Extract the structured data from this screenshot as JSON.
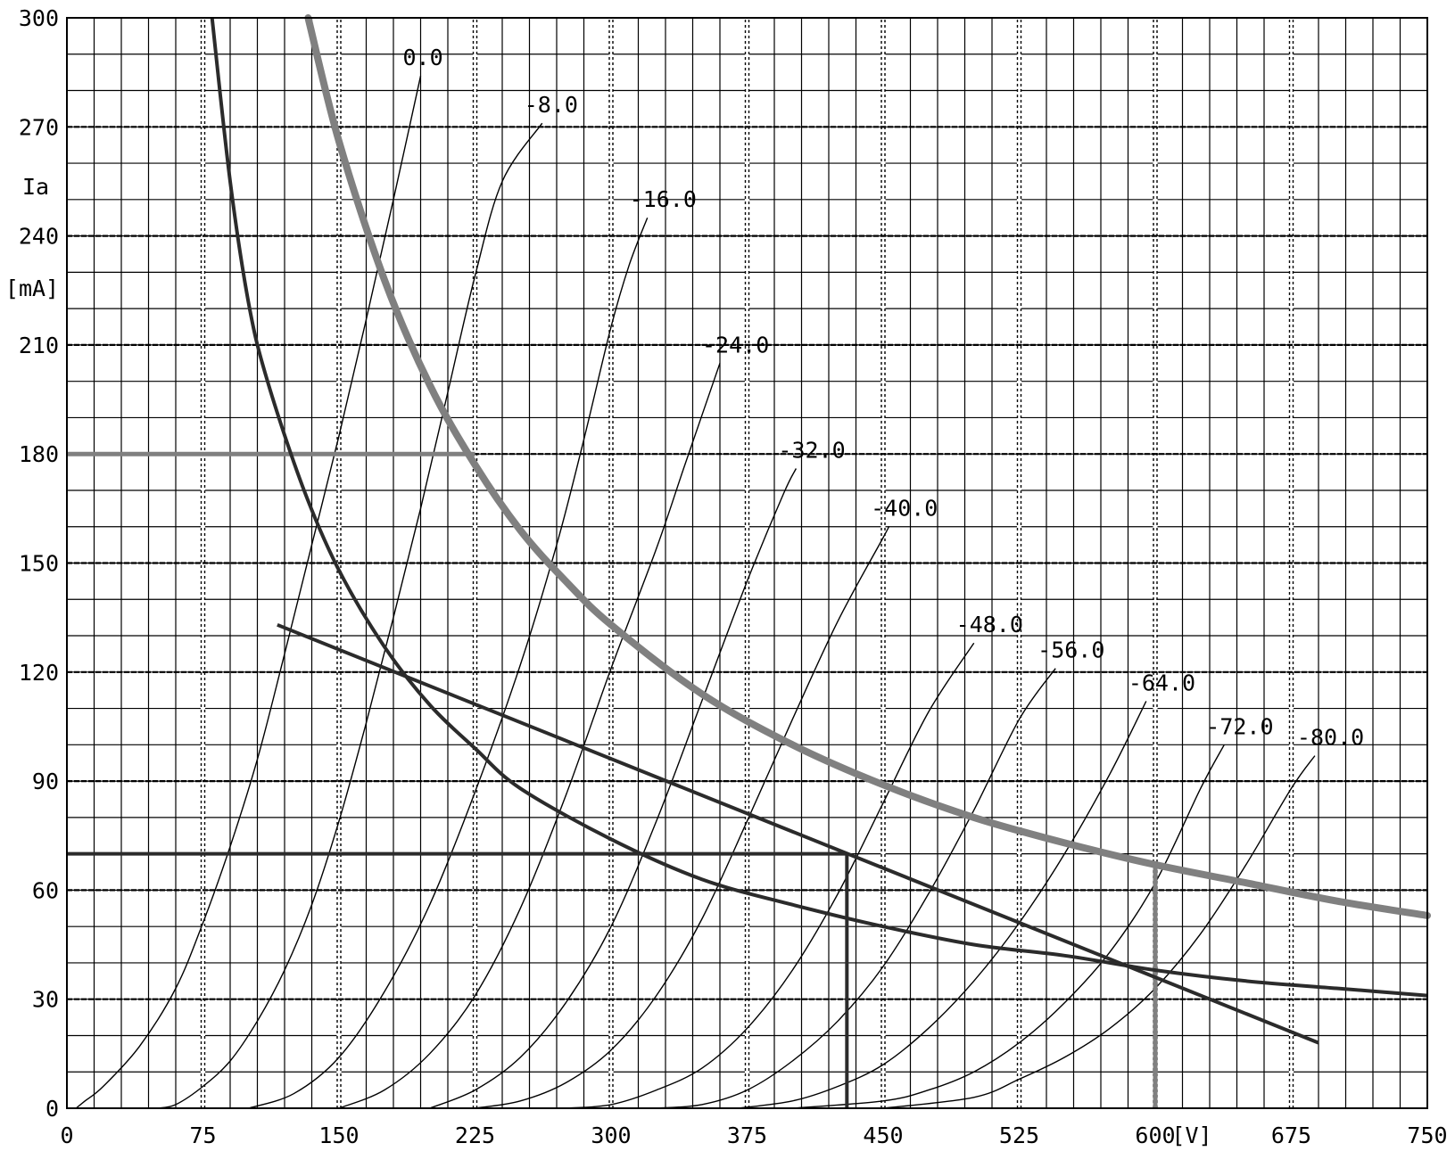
{
  "chart_data": {
    "type": "line",
    "title": "",
    "xlabel": "[V]",
    "ylabel_line1": "Ia",
    "ylabel_line2": "[mA]",
    "xlim": [
      0,
      750
    ],
    "ylim": [
      0,
      300
    ],
    "x_ticks": [
      0,
      75,
      150,
      225,
      300,
      375,
      450,
      525,
      600,
      675,
      750
    ],
    "y_ticks": [
      0,
      30,
      60,
      90,
      120,
      150,
      180,
      210,
      240,
      270,
      300
    ],
    "grid": true,
    "grid_minor_x": 15,
    "grid_minor_y": 10,
    "grid_dashed_x": [
      75,
      150,
      225,
      300,
      375,
      450,
      525,
      600,
      675
    ],
    "grid_dashed_y": [
      30,
      60,
      90,
      120,
      150,
      180,
      210,
      240,
      270
    ],
    "families": [
      {
        "name": "0.0",
        "points": [
          [
            5,
            0
          ],
          [
            10,
            2
          ],
          [
            20,
            6
          ],
          [
            40,
            17
          ],
          [
            60,
            33
          ],
          [
            75,
            51
          ],
          [
            90,
            72
          ],
          [
            105,
            96
          ],
          [
            120,
            125
          ],
          [
            135,
            155
          ],
          [
            150,
            185
          ],
          [
            165,
            217
          ],
          [
            180,
            250
          ],
          [
            195,
            284
          ]
        ]
      },
      {
        "name": "-8.0",
        "points": [
          [
            50,
            0
          ],
          [
            60,
            1
          ],
          [
            75,
            6
          ],
          [
            90,
            13
          ],
          [
            105,
            24
          ],
          [
            120,
            38
          ],
          [
            135,
            56
          ],
          [
            150,
            79
          ],
          [
            165,
            106
          ],
          [
            180,
            135
          ],
          [
            195,
            165
          ],
          [
            210,
            197
          ],
          [
            225,
            229
          ],
          [
            240,
            255
          ],
          [
            262,
            271
          ]
        ]
      },
      {
        "name": "-16.0",
        "points": [
          [
            100,
            0
          ],
          [
            125,
            4
          ],
          [
            150,
            14
          ],
          [
            175,
            32
          ],
          [
            200,
            56
          ],
          [
            225,
            87
          ],
          [
            250,
            122
          ],
          [
            270,
            155
          ],
          [
            285,
            184
          ],
          [
            300,
            215
          ],
          [
            310,
            232
          ],
          [
            320,
            245
          ]
        ]
      },
      {
        "name": "-24.0",
        "points": [
          [
            150,
            0
          ],
          [
            175,
            5
          ],
          [
            200,
            15
          ],
          [
            225,
            31
          ],
          [
            250,
            55
          ],
          [
            275,
            86
          ],
          [
            300,
            121
          ],
          [
            325,
            154
          ],
          [
            340,
            176
          ],
          [
            360,
            205
          ]
        ]
      },
      {
        "name": "-32.0",
        "points": [
          [
            200,
            0
          ],
          [
            225,
            5
          ],
          [
            250,
            14
          ],
          [
            275,
            29
          ],
          [
            300,
            50
          ],
          [
            325,
            79
          ],
          [
            350,
            112
          ],
          [
            375,
            145
          ],
          [
            395,
            169
          ],
          [
            402,
            176
          ]
        ]
      },
      {
        "name": "-40.0",
        "points": [
          [
            225,
            0
          ],
          [
            250,
            2
          ],
          [
            275,
            7
          ],
          [
            300,
            16
          ],
          [
            325,
            31
          ],
          [
            350,
            52
          ],
          [
            375,
            79
          ],
          [
            400,
            107
          ],
          [
            425,
            134
          ],
          [
            450,
            157
          ],
          [
            453,
            160
          ]
        ]
      },
      {
        "name": "-48.0",
        "points": [
          [
            275,
            0
          ],
          [
            300,
            1
          ],
          [
            325,
            5
          ],
          [
            350,
            11
          ],
          [
            375,
            22
          ],
          [
            400,
            38
          ],
          [
            425,
            59
          ],
          [
            450,
            84
          ],
          [
            475,
            109
          ],
          [
            500,
            128
          ]
        ]
      },
      {
        "name": "-56.0",
        "points": [
          [
            325,
            0
          ],
          [
            350,
            1
          ],
          [
            375,
            5
          ],
          [
            400,
            13
          ],
          [
            425,
            24
          ],
          [
            450,
            39
          ],
          [
            475,
            59
          ],
          [
            500,
            82
          ],
          [
            525,
            107
          ],
          [
            545,
            121
          ]
        ]
      },
      {
        "name": "-64.0",
        "points": [
          [
            370,
            0
          ],
          [
            400,
            2
          ],
          [
            425,
            6
          ],
          [
            450,
            12
          ],
          [
            475,
            22
          ],
          [
            500,
            35
          ],
          [
            525,
            51
          ],
          [
            550,
            70
          ],
          [
            575,
            92
          ],
          [
            595,
            112
          ]
        ]
      },
      {
        "name": "-72.0",
        "points": [
          [
            400,
            0
          ],
          [
            450,
            2
          ],
          [
            475,
            5
          ],
          [
            500,
            10
          ],
          [
            525,
            18
          ],
          [
            550,
            29
          ],
          [
            575,
            43
          ],
          [
            600,
            62
          ],
          [
            625,
            88
          ],
          [
            638,
            100
          ]
        ]
      },
      {
        "name": "-80.0",
        "points": [
          [
            450,
            0
          ],
          [
            500,
            3
          ],
          [
            525,
            8
          ],
          [
            550,
            14
          ],
          [
            575,
            22
          ],
          [
            600,
            33
          ],
          [
            625,
            48
          ],
          [
            650,
            67
          ],
          [
            675,
            88
          ],
          [
            688,
            97
          ]
        ]
      }
    ],
    "power_curve_thick_grey": [
      [
        133,
        300
      ],
      [
        150,
        266
      ],
      [
        175,
        228
      ],
      [
        200,
        199
      ],
      [
        225,
        177
      ],
      [
        250,
        159
      ],
      [
        275,
        145
      ],
      [
        300,
        133
      ],
      [
        350,
        114
      ],
      [
        400,
        100
      ],
      [
        450,
        89
      ],
      [
        500,
        80
      ],
      [
        550,
        73
      ],
      [
        600,
        67
      ],
      [
        650,
        62
      ],
      [
        700,
        57
      ],
      [
        750,
        53
      ]
    ],
    "power_curve_dark": [
      [
        80,
        300
      ],
      [
        90,
        255
      ],
      [
        100,
        222
      ],
      [
        110,
        201
      ],
      [
        130,
        171
      ],
      [
        150,
        148
      ],
      [
        175,
        127
      ],
      [
        200,
        111
      ],
      [
        225,
        99
      ],
      [
        250,
        88
      ],
      [
        300,
        74
      ],
      [
        350,
        63
      ],
      [
        400,
        56
      ],
      [
        450,
        50
      ],
      [
        500,
        45
      ],
      [
        550,
        42
      ],
      [
        600,
        38
      ],
      [
        650,
        35
      ],
      [
        700,
        33
      ],
      [
        750,
        31
      ]
    ],
    "load_line": [
      [
        116,
        133
      ],
      [
        690,
        18
      ]
    ],
    "operating_point_line_y70": [
      [
        0,
        70
      ],
      [
        430,
        70
      ]
    ],
    "operating_point_vertical_430": [
      [
        430,
        0
      ],
      [
        430,
        70
      ]
    ],
    "grey_line_y180": [
      [
        0,
        180
      ],
      [
        225,
        180
      ]
    ],
    "grey_vertical_600": [
      [
        600,
        0
      ],
      [
        600,
        67
      ]
    ],
    "colors": {
      "dark": "#2b2b2b",
      "grey": "#808080",
      "grid": "#000000",
      "background": "#ffffff"
    }
  }
}
